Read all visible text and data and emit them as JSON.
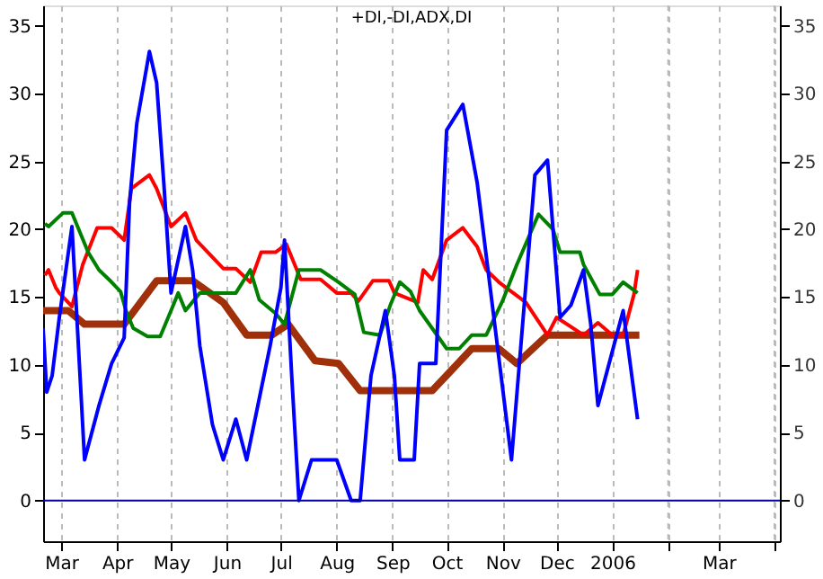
{
  "chart_data": {
    "type": "line",
    "title": "+DI,-DI,ADX,DI",
    "xlim": [
      "2005-02-19",
      "2006-04-04"
    ],
    "xticks": [
      {
        "value": "2005-03-01",
        "label": "Mar"
      },
      {
        "value": "2005-04-01",
        "label": "Apr"
      },
      {
        "value": "2005-05-01",
        "label": "May"
      },
      {
        "value": "2005-06-01",
        "label": "Jun"
      },
      {
        "value": "2005-07-01",
        "label": "Jul"
      },
      {
        "value": "2005-08-01",
        "label": "Aug"
      },
      {
        "value": "2005-09-01",
        "label": "Sep"
      },
      {
        "value": "2005-10-01",
        "label": "Oct"
      },
      {
        "value": "2005-11-01",
        "label": "Nov"
      },
      {
        "value": "2005-12-01",
        "label": "Dec"
      },
      {
        "value": "2006-01-01",
        "label": "2006"
      },
      {
        "value": "2006-02-01",
        "label": null
      },
      {
        "value": "2006-03-01",
        "label": "Mar"
      },
      {
        "value": "2006-04-01",
        "label": null
      }
    ],
    "ylim": [
      -3,
      36.5
    ],
    "yticks": [
      0,
      5,
      10,
      15,
      20,
      25,
      30,
      35
    ],
    "y2lim": [
      -3,
      36.5
    ],
    "y2ticks": [
      0,
      5,
      10,
      15,
      20,
      25,
      30,
      35
    ],
    "grid": "x",
    "line_style": "solid",
    "marker": "none",
    "ref_lines": [
      {
        "axis": "y",
        "value": 0,
        "label": null,
        "color": "#0000a0"
      }
    ],
    "series": [
      {
        "color": "#a0300a",
        "x": [
          "2005-02-19",
          "2005-03-05",
          "2005-03-14",
          "2005-04-05",
          "2005-04-23",
          "2005-05-13",
          "2005-05-30",
          "2005-06-12",
          "2005-06-26",
          "2005-07-05",
          "2005-07-20",
          "2005-08-02",
          "2005-08-14",
          "2005-09-23",
          "2005-10-15",
          "2005-10-30",
          "2005-11-09",
          "2005-11-26",
          "2006-01-16"
        ],
        "values": [
          14,
          14,
          13,
          13,
          16.2,
          16.2,
          14.6,
          12.2,
          12.2,
          13,
          10.3,
          10.1,
          8.1,
          8.1,
          11.2,
          11.2,
          10.1,
          12.2,
          12.2
        ]
      },
      {
        "color": "#ff0000",
        "x": [
          "2005-02-20",
          "2005-02-22",
          "2005-02-26",
          "2005-02-28",
          "2005-03-07",
          "2005-03-13",
          "2005-03-21",
          "2005-03-29",
          "2005-04-05",
          "2005-04-09",
          "2005-04-19",
          "2005-04-23",
          "2005-05-01",
          "2005-05-09",
          "2005-05-15",
          "2005-05-30",
          "2005-06-06",
          "2005-06-14",
          "2005-06-20",
          "2005-06-28",
          "2005-07-04",
          "2005-07-12",
          "2005-07-23",
          "2005-08-01",
          "2005-08-09",
          "2005-08-13",
          "2005-08-21",
          "2005-08-30",
          "2005-09-02",
          "2005-09-15",
          "2005-09-18",
          "2005-09-23",
          "2005-10-01",
          "2005-10-10",
          "2005-10-18",
          "2005-10-23",
          "2005-10-30",
          "2005-11-14",
          "2005-11-26",
          "2005-12-01",
          "2005-12-16",
          "2005-12-24",
          "2006-01-01",
          "2006-01-07",
          "2006-01-13",
          "2006-01-15"
        ],
        "values": [
          16.6,
          17,
          15.7,
          15.3,
          14.3,
          17.4,
          20.1,
          20.1,
          19.2,
          23,
          24,
          23,
          20.2,
          21.2,
          19.2,
          17.1,
          17.1,
          16.1,
          18.3,
          18.3,
          18.9,
          16.3,
          16.3,
          15.3,
          15.3,
          14.7,
          16.2,
          16.2,
          15.3,
          14.6,
          17,
          16.3,
          19.2,
          20.1,
          18.7,
          17,
          16.1,
          14.6,
          12.2,
          13.5,
          12.2,
          13.1,
          12.2,
          12.2,
          15.2,
          17
        ]
      },
      {
        "color": "#008000",
        "x": [
          "2005-02-20",
          "2005-02-22",
          "2005-03-02",
          "2005-03-07",
          "2005-03-16",
          "2005-03-22",
          "2005-03-29",
          "2005-04-03",
          "2005-04-06",
          "2005-04-10",
          "2005-04-18",
          "2005-04-25",
          "2005-05-01",
          "2005-05-05",
          "2005-05-09",
          "2005-05-17",
          "2005-06-06",
          "2005-06-14",
          "2005-06-19",
          "2005-06-28",
          "2005-07-03",
          "2005-07-11",
          "2005-07-23",
          "2005-08-02",
          "2005-08-11",
          "2005-08-16",
          "2005-08-25",
          "2005-08-31",
          "2005-09-05",
          "2005-09-11",
          "2005-09-16",
          "2005-10-01",
          "2005-10-08",
          "2005-10-15",
          "2005-10-23",
          "2005-11-01",
          "2005-11-09",
          "2005-11-21",
          "2005-11-29",
          "2005-12-03",
          "2005-12-14",
          "2005-12-16",
          "2005-12-25",
          "2006-01-01",
          "2006-01-07",
          "2006-01-15"
        ],
        "values": [
          20.4,
          20.2,
          21.2,
          21.2,
          18.3,
          17,
          16.1,
          15.4,
          14,
          12.7,
          12.1,
          12.1,
          14,
          15.3,
          14,
          15.3,
          15.3,
          17,
          14.8,
          13.8,
          13,
          17,
          17,
          16.1,
          15.2,
          12.4,
          12.2,
          14.5,
          16.1,
          15.4,
          14,
          11.2,
          11.2,
          12.2,
          12.2,
          14.7,
          17.4,
          21.1,
          20,
          18.3,
          18.3,
          17.4,
          15.2,
          15.2,
          16.1,
          15.3
        ]
      },
      {
        "color": "#0000ff",
        "x": [
          "2005-02-19",
          "2005-02-21",
          "2005-02-24",
          "2005-02-28",
          "2005-03-07",
          "2005-03-14",
          "2005-03-22",
          "2005-03-29",
          "2005-04-05",
          "2005-04-08",
          "2005-04-12",
          "2005-04-19",
          "2005-04-23",
          "2005-04-27",
          "2005-05-01",
          "2005-05-09",
          "2005-05-13",
          "2005-05-17",
          "2005-05-24",
          "2005-05-30",
          "2005-06-06",
          "2005-06-12",
          "2005-06-25",
          "2005-07-01",
          "2005-07-03",
          "2005-07-07",
          "2005-07-11",
          "2005-07-18",
          "2005-08-01",
          "2005-08-09",
          "2005-08-14",
          "2005-08-20",
          "2005-08-28",
          "2005-09-02",
          "2005-09-05",
          "2005-09-13",
          "2005-09-16",
          "2005-09-25",
          "2005-10-01",
          "2005-10-10",
          "2005-10-18",
          "2005-11-06",
          "2005-11-19",
          "2005-11-26",
          "2005-12-03",
          "2005-12-09",
          "2005-12-16",
          "2005-12-20",
          "2005-12-24",
          "2006-01-07",
          "2006-01-15"
        ],
        "values": [
          12.7,
          8,
          9.2,
          13.5,
          20.2,
          3,
          7,
          10.1,
          12,
          22,
          27.8,
          33.1,
          30.8,
          23.4,
          15.3,
          20.2,
          17,
          11.4,
          5.6,
          3,
          6,
          3,
          11.4,
          15.7,
          19.2,
          9.2,
          0,
          3,
          3,
          0,
          0,
          9.2,
          14,
          9.2,
          3,
          3,
          10.1,
          10.1,
          27.3,
          29.2,
          23.4,
          3,
          24,
          25.1,
          13.5,
          14.4,
          17,
          13,
          7,
          14,
          6
        ]
      }
    ]
  }
}
